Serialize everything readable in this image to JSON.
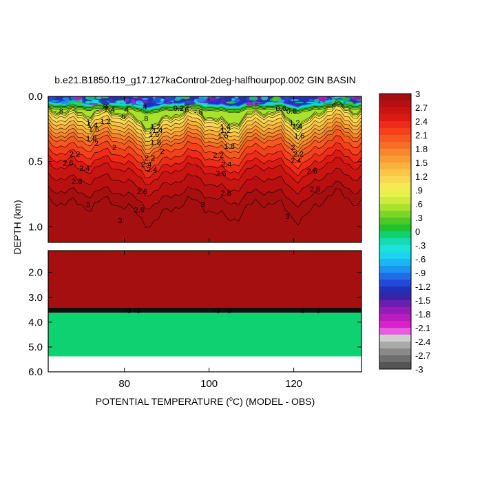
{
  "chart_data": {
    "type": "heatmap",
    "title": "b.e21.B1850.f19_g17.127kaControl-2deg-halfhourpop.002 GIN BASIN",
    "xlabel_pre": "POTENTIAL TEMPERATURE (",
    "xlabel_sup": "o",
    "xlabel_post": "C) (MODEL - OBS)",
    "ylabel": "DEPTH (km)",
    "xlim": [
      62,
      136
    ],
    "x_ticks": [
      {
        "value": 80,
        "label": "80"
      },
      {
        "value": 100,
        "label": "100"
      },
      {
        "value": 120,
        "label": "120"
      }
    ],
    "top_panel": {
      "ylim": [
        0.0,
        1.12
      ],
      "y_ticks": [
        {
          "value": 0.0,
          "label": "0.0"
        },
        {
          "value": 0.5,
          "label": "0.5"
        },
        {
          "value": 1.0,
          "label": "1.0"
        }
      ]
    },
    "bottom_panel": {
      "ylim": [
        1.12,
        6.0
      ],
      "y_ticks": [
        {
          "value": 2.0,
          "label": "2.0"
        },
        {
          "value": 3.0,
          "label": "3.0"
        },
        {
          "value": 4.0,
          "label": "4.0"
        },
        {
          "value": 5.0,
          "label": "5.0"
        },
        {
          "value": 6.0,
          "label": "6.0"
        }
      ],
      "layers": [
        {
          "from": 1.12,
          "to": 3.42,
          "value": 3
        },
        {
          "from": 3.42,
          "to": 3.62,
          "value": -3
        },
        {
          "from": 3.62,
          "to": 5.38,
          "value": 0
        },
        {
          "from": 5.38,
          "to": 6.0,
          "value": null
        }
      ]
    },
    "colorbar": {
      "levels": [
        3,
        2.85,
        2.7,
        2.55,
        2.4,
        2.25,
        2.1,
        1.95,
        1.8,
        1.65,
        1.5,
        1.35,
        1.2,
        1.05,
        0.9,
        0.75,
        0.6,
        0.45,
        0.3,
        0.15,
        0,
        -0.15,
        -0.3,
        -0.45,
        -0.6,
        -0.75,
        -0.9,
        -1.05,
        -1.2,
        -1.35,
        -1.5,
        -1.65,
        -1.8,
        -1.95,
        -2.1,
        -2.25,
        -2.4,
        -2.55,
        -2.7,
        -2.85
      ],
      "labels": [
        "3",
        "2.7",
        "2.4",
        "2.1",
        "1.8",
        "1.5",
        "1.2",
        ".9",
        ".6",
        ".3",
        "0",
        "-.3",
        "-.6",
        "-.9",
        "-1.2",
        "-1.5",
        "-1.8",
        "-2.1",
        "-2.4",
        "-2.7",
        "-3"
      ],
      "colors": [
        "#a50f0f",
        "#b80f10",
        "#c91512",
        "#dc1a14",
        "#ee2a18",
        "#f5401c",
        "#f7581f",
        "#f76f26",
        "#f8862c",
        "#f99c33",
        "#f9b23c",
        "#fac648",
        "#f9d951",
        "#f5ea4f",
        "#e8f04a",
        "#cdeb3c",
        "#a8e22c",
        "#7cd627",
        "#4dc927",
        "#21c22b",
        "#0fd171",
        "#17d9b4",
        "#1be3da",
        "#1ed3ee",
        "#1bb6f1",
        "#1c93ef",
        "#1f6ee8",
        "#2347d8",
        "#2230b8",
        "#3a23a8",
        "#6a1fb0",
        "#961cb7",
        "#bb1cc0",
        "#da20cc",
        "#e75de0",
        "#cfcfcf",
        "#aaaaaa",
        "#8a8a8a",
        "#6e6e6e",
        "#555555"
      ]
    },
    "contour_labels": [
      {
        "x": 64.5,
        "y": 0.11,
        "label": "-.8"
      },
      {
        "x": 75.2,
        "y": 0.08,
        "label": ".8"
      },
      {
        "x": 76.5,
        "y": 0.1,
        "label": "2.4"
      },
      {
        "x": 79.5,
        "y": 0.15,
        "label": ".6"
      },
      {
        "x": 80.5,
        "y": 0.1,
        "label": "4"
      },
      {
        "x": 75.5,
        "y": 0.19,
        "label": "1.2"
      },
      {
        "x": 71.5,
        "y": 0.2,
        "label": "1"
      },
      {
        "x": 72.5,
        "y": 0.22,
        "label": "1.4"
      },
      {
        "x": 72.8,
        "y": 0.25,
        "label": "1.6"
      },
      {
        "x": 72.2,
        "y": 0.32,
        "label": "1.8"
      },
      {
        "x": 73.4,
        "y": 0.36,
        "label": "2"
      },
      {
        "x": 77.6,
        "y": 0.39,
        "label": "2"
      },
      {
        "x": 68.3,
        "y": 0.44,
        "label": "2.2"
      },
      {
        "x": 66.7,
        "y": 0.51,
        "label": "2.6"
      },
      {
        "x": 70.6,
        "y": 0.55,
        "label": "2.4"
      },
      {
        "x": 68.8,
        "y": 0.65,
        "label": "2.8"
      },
      {
        "x": 71.4,
        "y": 0.83,
        "label": "3"
      },
      {
        "x": 84.9,
        "y": 0.17,
        "label": ".8"
      },
      {
        "x": 84.6,
        "y": 0.08,
        "label": ".4"
      },
      {
        "x": 87.3,
        "y": 0.23,
        "label": "1.2"
      },
      {
        "x": 87.8,
        "y": 0.26,
        "label": "1.4"
      },
      {
        "x": 87.0,
        "y": 0.29,
        "label": "1.6"
      },
      {
        "x": 87.4,
        "y": 0.35,
        "label": "1.8"
      },
      {
        "x": 88.9,
        "y": 0.42,
        "label": "2"
      },
      {
        "x": 86.0,
        "y": 0.47,
        "label": "2.2"
      },
      {
        "x": 85.2,
        "y": 0.52,
        "label": "2.4"
      },
      {
        "x": 86.5,
        "y": 0.56,
        "label": "2.4"
      },
      {
        "x": 84.2,
        "y": 0.73,
        "label": "2.6"
      },
      {
        "x": 83.5,
        "y": 0.87,
        "label": "2.8"
      },
      {
        "x": 79.0,
        "y": 0.95,
        "label": "3"
      },
      {
        "x": 92.8,
        "y": 0.09,
        "label": "0.2"
      },
      {
        "x": 94.5,
        "y": 0.1,
        "label": ".6"
      },
      {
        "x": 97.5,
        "y": 0.12,
        "label": "-.8"
      },
      {
        "x": 103.8,
        "y": 0.23,
        "label": "1.4"
      },
      {
        "x": 103.9,
        "y": 0.26,
        "label": "1.2"
      },
      {
        "x": 103.3,
        "y": 0.3,
        "label": "1.6"
      },
      {
        "x": 104.8,
        "y": 0.38,
        "label": "1.8"
      },
      {
        "x": 102.2,
        "y": 0.45,
        "label": "2.2"
      },
      {
        "x": 104.1,
        "y": 0.52,
        "label": "2.4"
      },
      {
        "x": 102.8,
        "y": 0.59,
        "label": "2.6"
      },
      {
        "x": 104.0,
        "y": 0.74,
        "label": "2.8"
      },
      {
        "x": 98.5,
        "y": 0.83,
        "label": "3"
      },
      {
        "x": 117.0,
        "y": 0.09,
        "label": "0.6"
      },
      {
        "x": 119.5,
        "y": 0.11,
        "label": "0.8"
      },
      {
        "x": 120.2,
        "y": 0.2,
        "label": "1.2"
      },
      {
        "x": 120.8,
        "y": 0.23,
        "label": "1.4"
      },
      {
        "x": 121.3,
        "y": 0.3,
        "label": "1.6"
      },
      {
        "x": 119.8,
        "y": 0.39,
        "label": "2"
      },
      {
        "x": 121.1,
        "y": 0.44,
        "label": "2.2"
      },
      {
        "x": 120.5,
        "y": 0.49,
        "label": "2.4"
      },
      {
        "x": 124.3,
        "y": 0.57,
        "label": "2.6"
      },
      {
        "x": 125.0,
        "y": 0.71,
        "label": "2.8"
      },
      {
        "x": 118.5,
        "y": 0.92,
        "label": "3"
      },
      {
        "x": 80.8,
        "y": 3.52,
        "label": "-3"
      },
      {
        "x": 83.0,
        "y": 3.52,
        "label": "-3"
      },
      {
        "x": 101.8,
        "y": 3.52,
        "label": "-3"
      },
      {
        "x": 104.5,
        "y": 3.52,
        "label": "-3"
      },
      {
        "x": 121.8,
        "y": 3.52,
        "label": "-3"
      },
      {
        "x": 125.5,
        "y": 3.52,
        "label": "-3"
      }
    ]
  }
}
